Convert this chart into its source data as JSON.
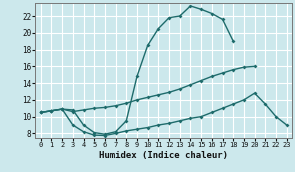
{
  "title": "",
  "xlabel": "Humidex (Indice chaleur)",
  "bg_color": "#cce8ec",
  "line_color": "#1e6b6b",
  "grid_color": "#b0d8dc",
  "xlim": [
    -0.5,
    23.5
  ],
  "ylim": [
    7.5,
    23.5
  ],
  "xticks": [
    0,
    1,
    2,
    3,
    4,
    5,
    6,
    7,
    8,
    9,
    10,
    11,
    12,
    13,
    14,
    15,
    16,
    17,
    18,
    19,
    20,
    21,
    22,
    23
  ],
  "yticks": [
    8,
    10,
    12,
    14,
    16,
    18,
    20,
    22
  ],
  "curve1_x": [
    0,
    1,
    2,
    3,
    4,
    5,
    6,
    7,
    8,
    9,
    10,
    11,
    12,
    13,
    14,
    15,
    16,
    17,
    18
  ],
  "curve1_y": [
    10.5,
    10.7,
    10.9,
    10.8,
    9.0,
    8.1,
    7.9,
    8.2,
    9.5,
    14.8,
    18.5,
    20.5,
    21.8,
    22.0,
    23.2,
    22.8,
    22.3,
    21.6,
    19.0
  ],
  "curve2_x": [
    0,
    1,
    2,
    3,
    4,
    5,
    6,
    7,
    8,
    9,
    10,
    11,
    12,
    13,
    14,
    15,
    16,
    17,
    18,
    19,
    20
  ],
  "curve2_y": [
    10.5,
    10.7,
    10.9,
    10.6,
    10.8,
    11.0,
    11.1,
    11.3,
    11.6,
    12.0,
    12.3,
    12.6,
    12.9,
    13.3,
    13.8,
    14.3,
    14.8,
    15.2,
    15.6,
    15.9,
    16.0
  ],
  "curve3_x": [
    0,
    1,
    2,
    3,
    4,
    5,
    6,
    7,
    8,
    9,
    10,
    11,
    12,
    13,
    14,
    15,
    16,
    17,
    18,
    19,
    20,
    21,
    22,
    23
  ],
  "curve3_y": [
    10.5,
    10.7,
    10.9,
    9.0,
    8.2,
    7.8,
    7.75,
    8.0,
    8.3,
    8.5,
    8.7,
    9.0,
    9.2,
    9.5,
    9.8,
    10.0,
    10.5,
    11.0,
    11.5,
    12.0,
    12.8,
    11.5,
    10.0,
    9.0
  ]
}
